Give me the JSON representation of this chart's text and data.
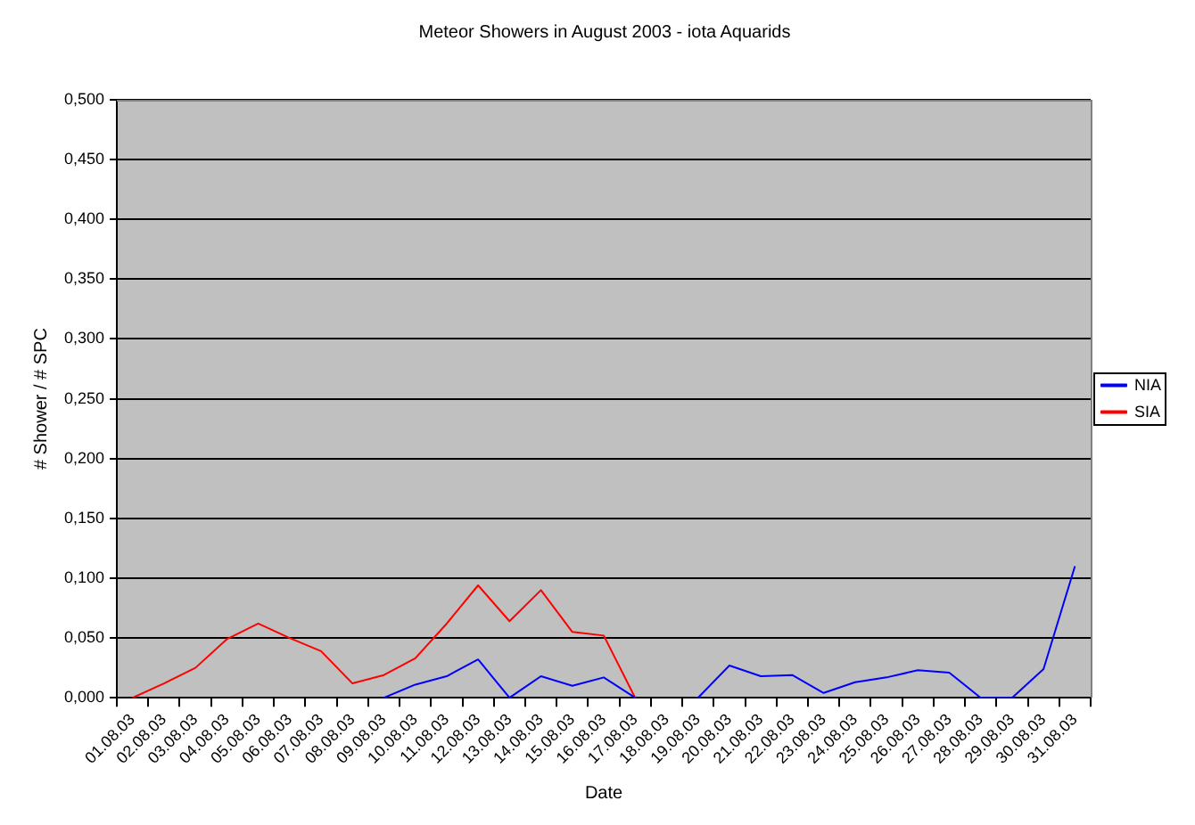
{
  "chart_data": {
    "type": "line",
    "title": "Meteor Showers in August 2003 - iota Aquarids",
    "xlabel": "Date",
    "ylabel": "# Shower / # SPC",
    "categories": [
      "01.08.03",
      "02.08.03",
      "03.08.03",
      "04.08.03",
      "05.08.03",
      "06.08.03",
      "07.08.03",
      "08.08.03",
      "09.08.03",
      "10.08.03",
      "11.08.03",
      "12.08.03",
      "13.08.03",
      "14.08.03",
      "15.08.03",
      "16.08.03",
      "17.08.03",
      "18.08.03",
      "19.08.03",
      "20.08.03",
      "21.08.03",
      "22.08.03",
      "23.08.03",
      "24.08.03",
      "25.08.03",
      "26.08.03",
      "27.08.03",
      "28.08.03",
      "29.08.03",
      "30.08.03",
      "31.08.03"
    ],
    "series": [
      {
        "name": "NIA",
        "color": "#0000ff",
        "values": [
          null,
          null,
          null,
          null,
          null,
          null,
          null,
          null,
          0,
          0.011,
          0.018,
          0.032,
          0,
          0.018,
          0.01,
          0.017,
          0,
          null,
          0,
          0.027,
          0.018,
          0.019,
          0.004,
          0.013,
          0.017,
          0.023,
          0.021,
          0,
          0,
          0.024,
          0.11
        ]
      },
      {
        "name": "SIA",
        "color": "#ff0000",
        "values": [
          0,
          0.012,
          0.025,
          0.049,
          0.062,
          0.05,
          0.039,
          0.012,
          0.019,
          0.033,
          0.062,
          0.094,
          0.064,
          0.09,
          0.055,
          0.052,
          0,
          null,
          null,
          null,
          null,
          null,
          null,
          null,
          null,
          null,
          null,
          null,
          null,
          null,
          null
        ]
      }
    ],
    "ylim": [
      0,
      0.5
    ],
    "yticks": [
      {
        "value": 0,
        "label": "0,000"
      },
      {
        "value": 0.05,
        "label": "0,050"
      },
      {
        "value": 0.1,
        "label": "0,100"
      },
      {
        "value": 0.15,
        "label": "0,150"
      },
      {
        "value": 0.2,
        "label": "0,200"
      },
      {
        "value": 0.25,
        "label": "0,250"
      },
      {
        "value": 0.3,
        "label": "0,300"
      },
      {
        "value": 0.35,
        "label": "0,350"
      },
      {
        "value": 0.4,
        "label": "0,400"
      },
      {
        "value": 0.45,
        "label": "0,450"
      },
      {
        "value": 0.5,
        "label": "0,500"
      }
    ],
    "grid": "y",
    "legend": "right",
    "marker": "none",
    "line_style": "solid"
  }
}
